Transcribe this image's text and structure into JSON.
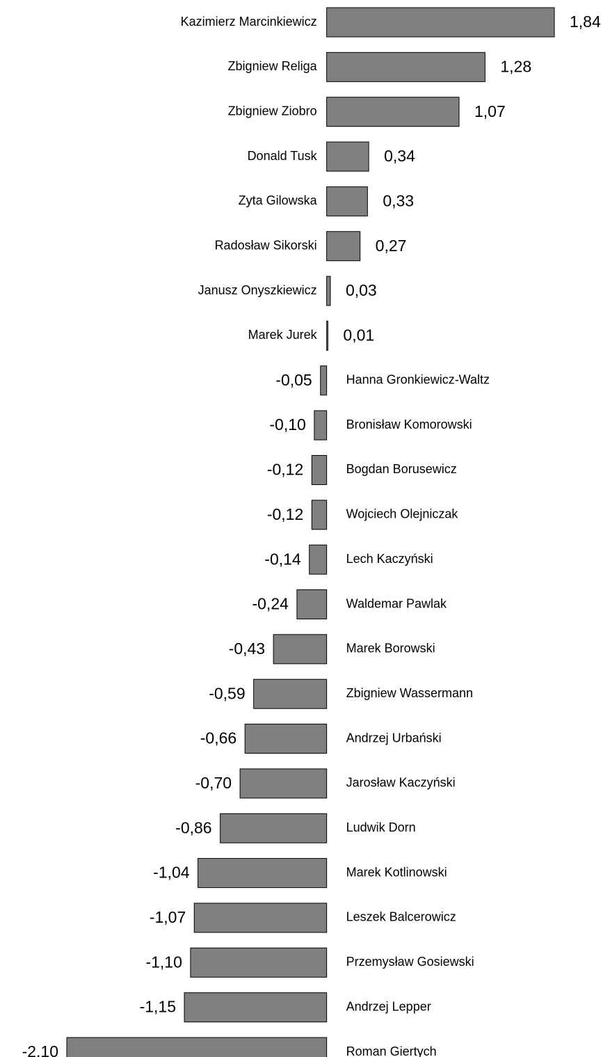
{
  "chart_data": {
    "type": "bar",
    "orientation": "horizontal",
    "color": "#808080",
    "categories": [
      "Kazimierz Marcinkiewicz",
      "Zbigniew Religa",
      "Zbigniew Ziobro",
      "Donald Tusk",
      "Zyta Gilowska",
      "Radosław Sikorski",
      "Janusz Onyszkiewicz",
      "Marek Jurek",
      "Hanna Gronkiewicz-Waltz",
      "Bronisław Komorowski",
      "Bogdan Borusewicz",
      "Wojciech Olejniczak",
      "Lech Kaczyński",
      "Waldemar Pawlak",
      "Marek Borowski",
      "Zbigniew Wassermann",
      "Andrzej Urbański",
      "Jarosław Kaczyński",
      "Ludwik Dorn",
      "Marek Kotlinowski",
      "Leszek Balcerowicz",
      "Przemysław Gosiewski",
      "Andrzej Lepper",
      "Roman Giertych"
    ],
    "values": [
      1.84,
      1.28,
      1.07,
      0.34,
      0.33,
      0.27,
      0.03,
      0.01,
      -0.05,
      -0.1,
      -0.12,
      -0.12,
      -0.14,
      -0.24,
      -0.43,
      -0.59,
      -0.66,
      -0.7,
      -0.86,
      -1.04,
      -1.07,
      -1.1,
      -1.15,
      -2.1
    ],
    "value_labels": [
      "1,84",
      "1,28",
      "1,07",
      "0,34",
      "0,33",
      "0,27",
      "0,03",
      "0,01",
      "-0,05",
      "-0,10",
      "-0,12",
      "-0,12",
      "-0,14",
      "-0,24",
      "-0,43",
      "-0,59",
      "-0,66",
      "-0,70",
      "-0,86",
      "-1,04",
      "-1,07",
      "-1,10",
      "-1,15",
      "-2,10"
    ],
    "xlim": [
      -2.1,
      1.84
    ]
  }
}
